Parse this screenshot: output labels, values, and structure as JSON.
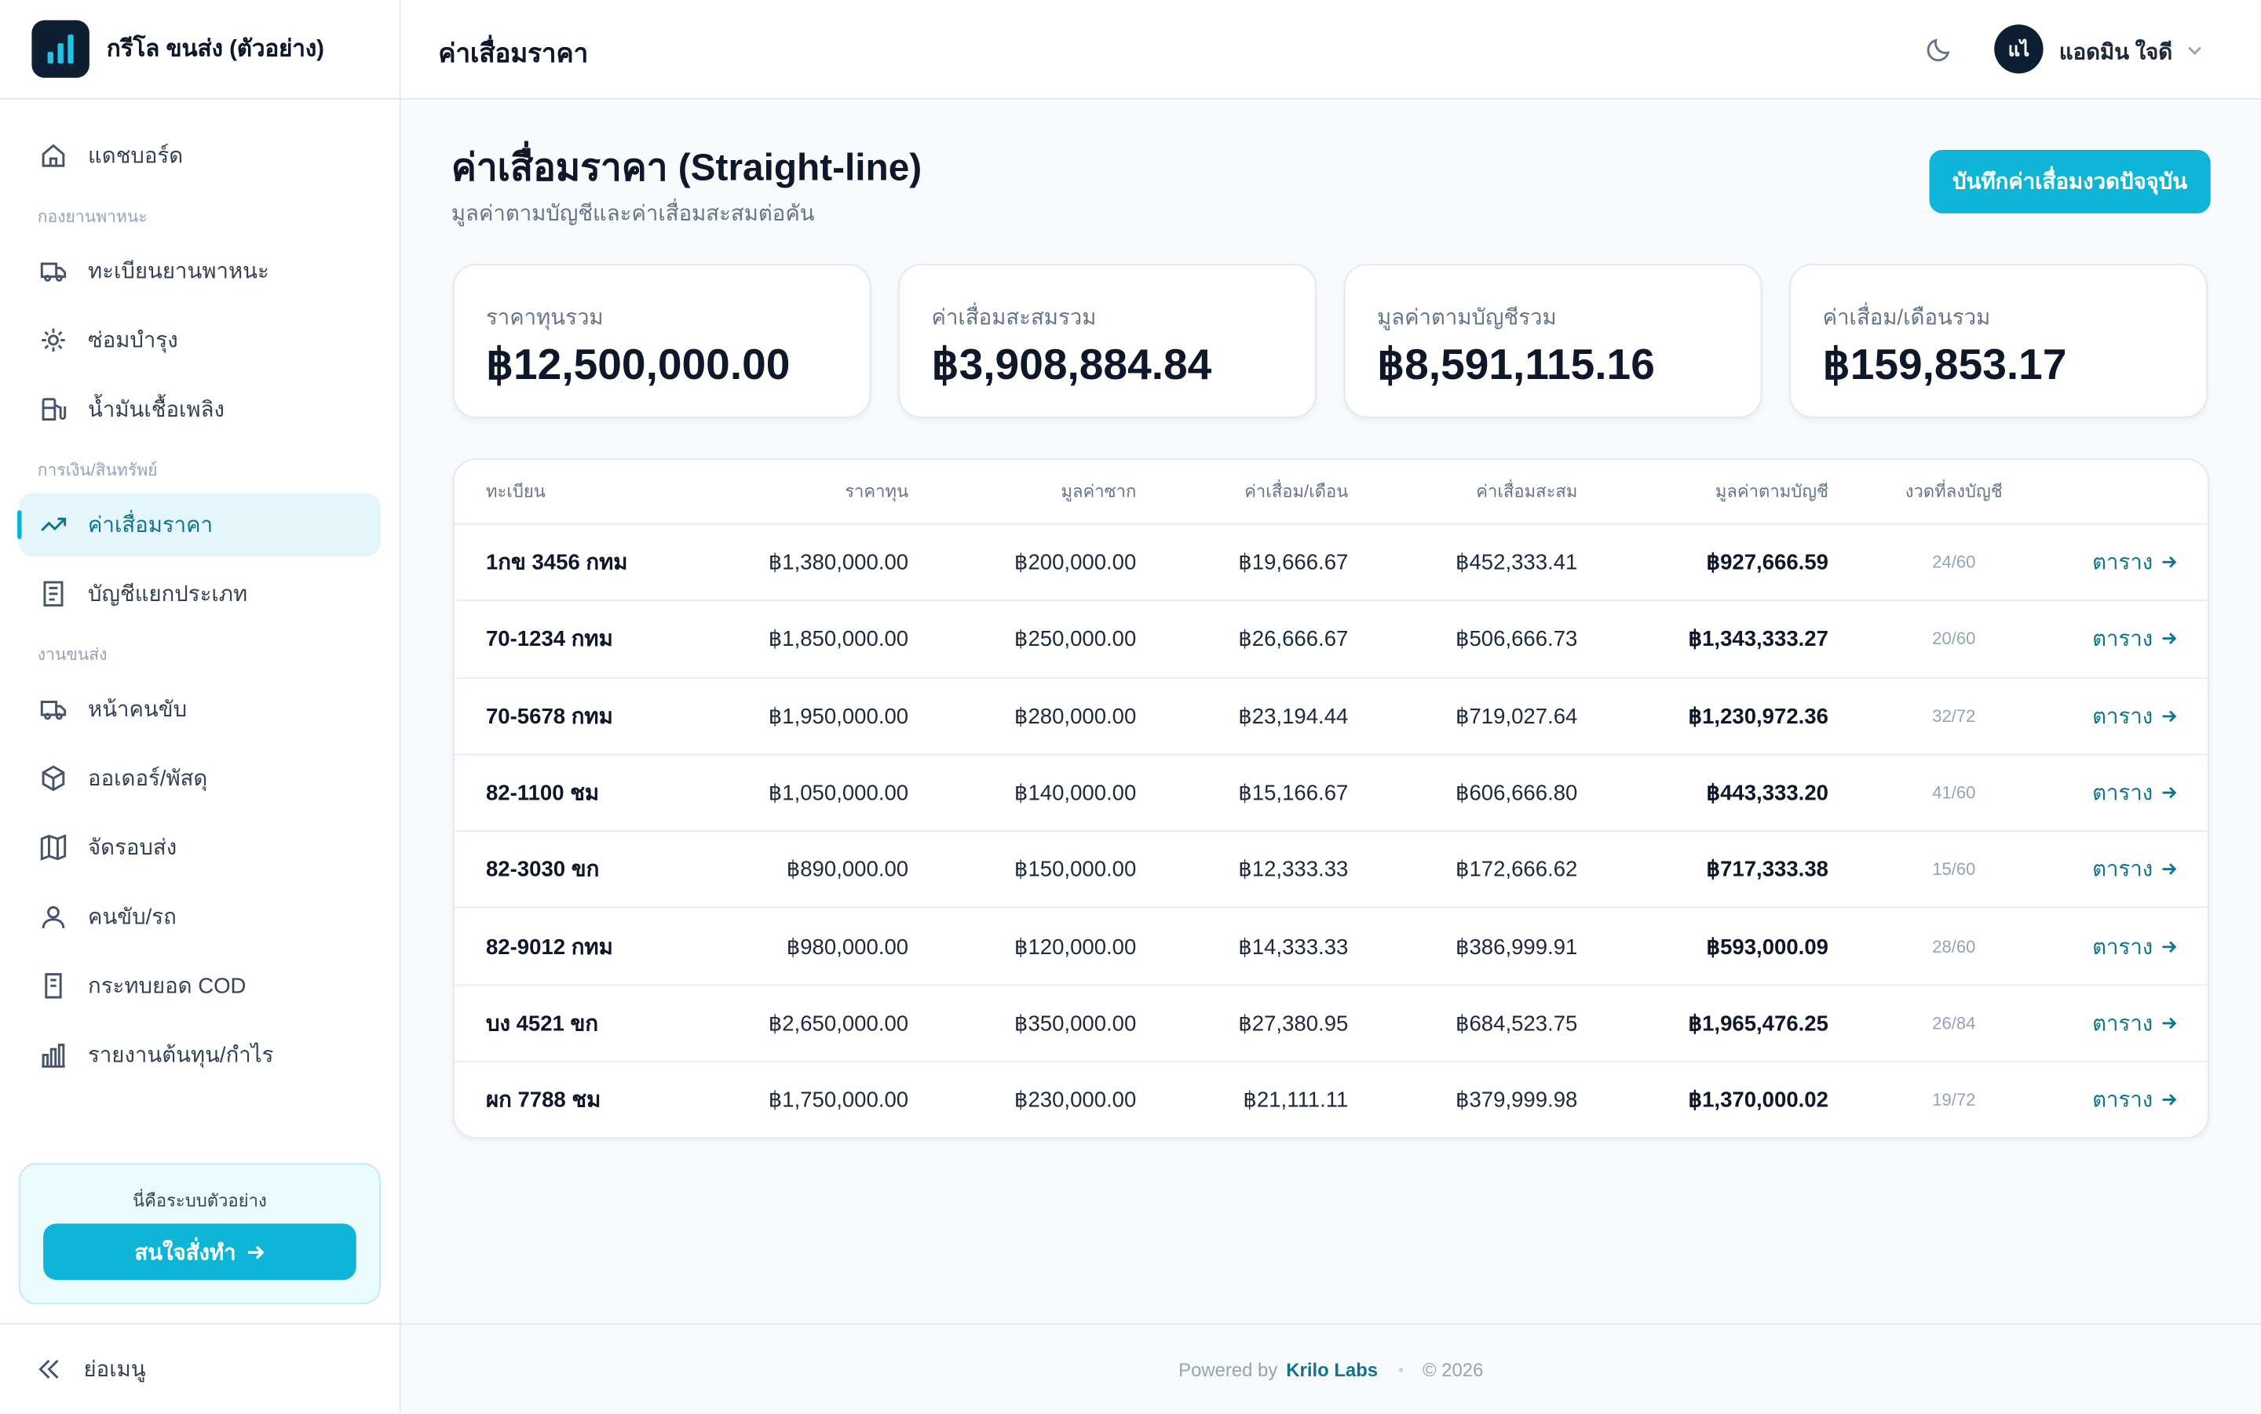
{
  "brand": {
    "name": "กรีโล ขนส่ง (ตัวอย่าง)"
  },
  "nav_groups": [
    {
      "items": [
        "แดชบอร์ด"
      ]
    },
    {
      "heading": "กองยานพาหนะ",
      "items": [
        "ทะเบียนยานพาหนะ",
        "ซ่อมบำรุง",
        "น้ำมันเชื้อเพลิง"
      ]
    },
    {
      "heading": "การเงิน/สินทรัพย์",
      "items": [
        "ค่าเสื่อมราคา",
        "บัญชีแยกประเภท"
      ]
    },
    {
      "heading": "งานขนส่ง",
      "items": [
        "หน้าคนขับ",
        "ออเดอร์/พัสดุ",
        "จัดรอบส่ง",
        "คนขับ/รถ",
        "กระทบยอด COD",
        "รายงานต้นทุน/กำไร"
      ]
    }
  ],
  "promo": {
    "text": "นี่คือระบบตัวอย่าง",
    "button": "สนใจสั่งทำ"
  },
  "collapse": "ย่อเมนู",
  "header": {
    "title": "ค่าเสื่อมราคา",
    "avatar": "แไ",
    "user": "แอดมิน ใจดี"
  },
  "page": {
    "title": "ค่าเสื่อมราคา (Straight-line)",
    "subtitle": "มูลค่าตามบัญชีและค่าเสื่อมสะสมต่อคัน",
    "button": "บันทึกค่าเสื่อมงวดปัจจุบัน"
  },
  "cards": [
    {
      "label": "ราคาทุนรวม",
      "value": "฿12,500,000.00"
    },
    {
      "label": "ค่าเสื่อมสะสมรวม",
      "value": "฿3,908,884.84"
    },
    {
      "label": "มูลค่าตามบัญชีรวม",
      "value": "฿8,591,115.16"
    },
    {
      "label": "ค่าเสื่อม/เดือนรวม",
      "value": "฿159,853.17"
    }
  ],
  "table": {
    "columns": [
      "ทะเบียน",
      "ราคาทุน",
      "มูลค่าซาก",
      "ค่าเสื่อม/เดือน",
      "ค่าเสื่อมสะสม",
      "มูลค่าตามบัญชี",
      "งวดที่ลงบัญชี"
    ],
    "link": "ตาราง",
    "rows": [
      [
        "1กข 3456 กทม",
        "฿1,380,000.00",
        "฿200,000.00",
        "฿19,666.67",
        "฿452,333.41",
        "฿927,666.59",
        "24/60"
      ],
      [
        "70-1234 กทม",
        "฿1,850,000.00",
        "฿250,000.00",
        "฿26,666.67",
        "฿506,666.73",
        "฿1,343,333.27",
        "20/60"
      ],
      [
        "70-5678 กทม",
        "฿1,950,000.00",
        "฿280,000.00",
        "฿23,194.44",
        "฿719,027.64",
        "฿1,230,972.36",
        "32/72"
      ],
      [
        "82-1100 ชม",
        "฿1,050,000.00",
        "฿140,000.00",
        "฿15,166.67",
        "฿606,666.80",
        "฿443,333.20",
        "41/60"
      ],
      [
        "82-3030 ขก",
        "฿890,000.00",
        "฿150,000.00",
        "฿12,333.33",
        "฿172,666.62",
        "฿717,333.38",
        "15/60"
      ],
      [
        "82-9012 กทม",
        "฿980,000.00",
        "฿120,000.00",
        "฿14,333.33",
        "฿386,999.91",
        "฿593,000.09",
        "28/60"
      ],
      [
        "บง 4521 ขก",
        "฿2,650,000.00",
        "฿350,000.00",
        "฿27,380.95",
        "฿684,523.75",
        "฿1,965,476.25",
        "26/84"
      ],
      [
        "ผก 7788 ชม",
        "฿1,750,000.00",
        "฿230,000.00",
        "฿21,111.11",
        "฿379,999.98",
        "฿1,370,000.02",
        "19/72"
      ]
    ]
  },
  "footer": {
    "powered": "Powered by",
    "company": "Krilo Labs",
    "copyright": "© 2026"
  }
}
